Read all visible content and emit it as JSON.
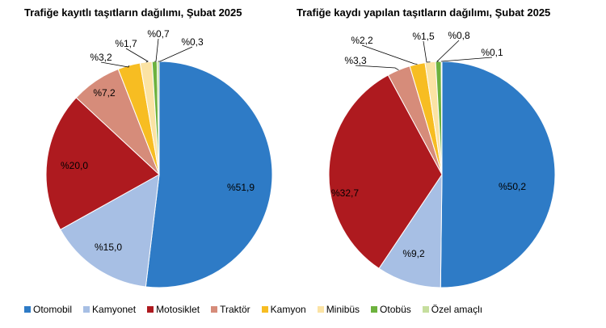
{
  "chart_data": [
    {
      "type": "pie",
      "title": "Trafiğe kayıtlı taşıtların dağılımı, Şubat 2025",
      "categories": [
        "Otomobil",
        "Kamyonet",
        "Motosiklet",
        "Traktör",
        "Kamyon",
        "Minibüs",
        "Otobüs",
        "Özel amaçlı"
      ],
      "values": [
        51.9,
        15.0,
        20.0,
        7.2,
        3.2,
        1.7,
        0.7,
        0.3
      ],
      "labels": [
        "%51,9",
        "%15,0",
        "%20,0",
        "%7,2",
        "%3,2",
        "%1,7",
        "%0,7",
        "%0,3"
      ]
    },
    {
      "type": "pie",
      "title": "Trafiğe kaydı yapılan taşıtların dağılımı, Şubat 2025",
      "categories": [
        "Otomobil",
        "Kamyonet",
        "Motosiklet",
        "Traktör",
        "Kamyon",
        "Minibüs",
        "Otobüs",
        "Özel amaçlı"
      ],
      "values": [
        50.2,
        9.2,
        32.7,
        3.3,
        2.2,
        1.5,
        0.8,
        0.1
      ],
      "labels": [
        "%50,2",
        "%9,2",
        "%32,7",
        "%3,3",
        "%2,2",
        "%1,5",
        "%0,8",
        "%0,1"
      ]
    }
  ],
  "legend": {
    "position": "bottom",
    "items": [
      {
        "label": "Otomobil",
        "color": "#2E7BC6"
      },
      {
        "label": "Kamyonet",
        "color": "#A7BFE4"
      },
      {
        "label": "Motosiklet",
        "color": "#AE1A1F"
      },
      {
        "label": "Traktör",
        "color": "#D68C7A"
      },
      {
        "label": "Kamyon",
        "color": "#F7BD22"
      },
      {
        "label": "Minibüs",
        "color": "#FBE3A4"
      },
      {
        "label": "Otobüs",
        "color": "#6DB23E"
      },
      {
        "label": "Özel amaçlı",
        "color": "#C6DE9E"
      }
    ]
  }
}
